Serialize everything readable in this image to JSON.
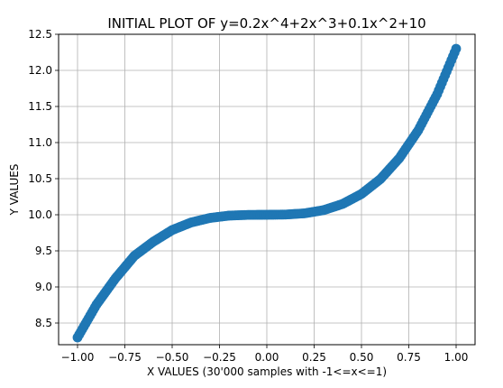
{
  "chart_data": {
    "type": "scatter",
    "title": "INITIAL PLOT OF y=0.2x^4+2x^3+0.1x^2+10",
    "xlabel": "X VALUES (30'000 samples with -1<=x<=1)",
    "ylabel": "Y VALUES",
    "xlim": [
      -1.1,
      1.1
    ],
    "ylim": [
      8.2,
      12.5
    ],
    "grid": true,
    "x_ticks": [
      -1.0,
      -0.75,
      -0.5,
      -0.25,
      0.0,
      0.25,
      0.5,
      0.75,
      1.0
    ],
    "x_tick_labels": [
      "−1.00",
      "−0.75",
      "−0.50",
      "−0.25",
      "0.00",
      "0.25",
      "0.50",
      "0.75",
      "1.00"
    ],
    "y_ticks": [
      8.5,
      9.0,
      9.5,
      10.0,
      10.5,
      11.0,
      11.5,
      12.0,
      12.5
    ],
    "y_tick_labels": [
      "8.5",
      "9.0",
      "9.5",
      "10.0",
      "10.5",
      "11.0",
      "11.5",
      "12.0",
      "12.5"
    ],
    "series": [
      {
        "color": "#1f77b4",
        "x": [
          -1.0,
          -0.9,
          -0.8,
          -0.7,
          -0.6,
          -0.5,
          -0.4,
          -0.3,
          -0.2,
          -0.1,
          0.0,
          0.1,
          0.2,
          0.3,
          0.4,
          0.5,
          0.6,
          0.7,
          0.8,
          0.9,
          1.0
        ],
        "y": [
          8.3,
          8.755,
          9.118,
          9.43,
          9.626,
          9.788,
          9.893,
          9.956,
          9.988,
          9.998,
          10.0,
          10.003,
          10.02,
          10.064,
          10.149,
          10.288,
          10.494,
          10.784,
          11.17,
          11.671,
          12.3
        ]
      }
    ]
  }
}
